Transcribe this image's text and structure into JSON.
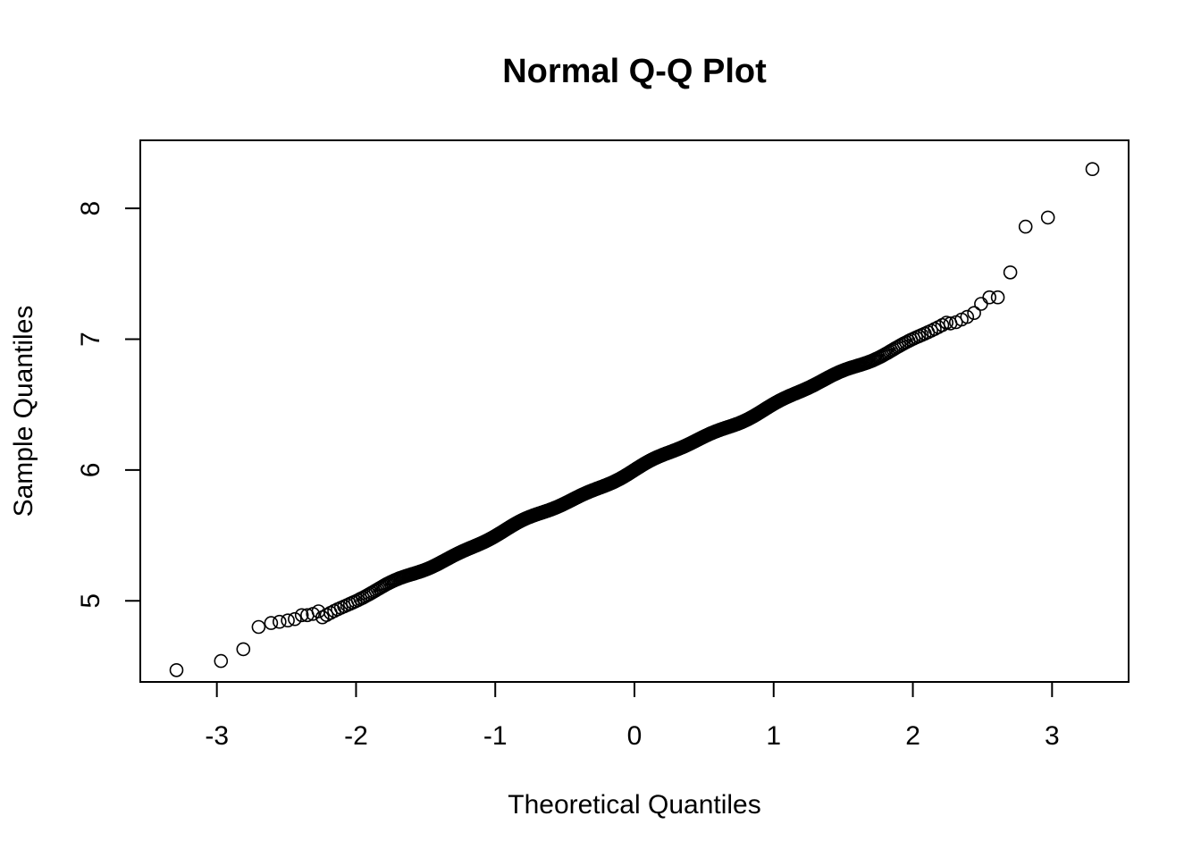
{
  "chart_data": {
    "type": "scatter",
    "title": "Normal Q-Q Plot",
    "xlabel": "Theoretical Quantiles",
    "ylabel": "Sample Quantiles",
    "xlim": [
      -3.55,
      3.55
    ],
    "ylim": [
      4.38,
      8.52
    ],
    "xticks": [
      -3,
      -2,
      -1,
      0,
      1,
      2,
      3
    ],
    "xtick_labels": [
      "-3",
      "-2",
      "-1",
      "0",
      "1",
      "2",
      "3"
    ],
    "yticks": [
      5,
      6,
      7,
      8
    ],
    "ytick_labels": [
      "5",
      "6",
      "7",
      "8"
    ],
    "grid": false,
    "legend": "none",
    "marker": "open-circle",
    "sample_size": 1000,
    "fit": {
      "intercept": 6.0,
      "slope": 0.5
    },
    "outliers": [
      {
        "x": -3.29,
        "y": 4.47
      },
      {
        "x": -2.97,
        "y": 4.54
      },
      {
        "x": -2.81,
        "y": 4.63
      },
      {
        "x": -2.7,
        "y": 4.8
      },
      {
        "x": -2.61,
        "y": 4.83
      },
      {
        "x": -2.55,
        "y": 4.84
      },
      {
        "x": -2.49,
        "y": 4.85
      },
      {
        "x": -2.44,
        "y": 4.86
      },
      {
        "x": -2.39,
        "y": 4.89
      },
      {
        "x": -2.35,
        "y": 4.89
      },
      {
        "x": -2.31,
        "y": 4.9
      },
      {
        "x": -2.27,
        "y": 4.92
      },
      {
        "x": 2.27,
        "y": 7.12
      },
      {
        "x": 2.31,
        "y": 7.13
      },
      {
        "x": 2.35,
        "y": 7.15
      },
      {
        "x": 2.39,
        "y": 7.17
      },
      {
        "x": 2.44,
        "y": 7.2
      },
      {
        "x": 2.49,
        "y": 7.27
      },
      {
        "x": 2.55,
        "y": 7.32
      },
      {
        "x": 2.61,
        "y": 7.32
      },
      {
        "x": 2.7,
        "y": 7.51
      },
      {
        "x": 2.81,
        "y": 7.86
      },
      {
        "x": 2.97,
        "y": 7.93
      },
      {
        "x": 3.29,
        "y": 8.3
      }
    ]
  }
}
